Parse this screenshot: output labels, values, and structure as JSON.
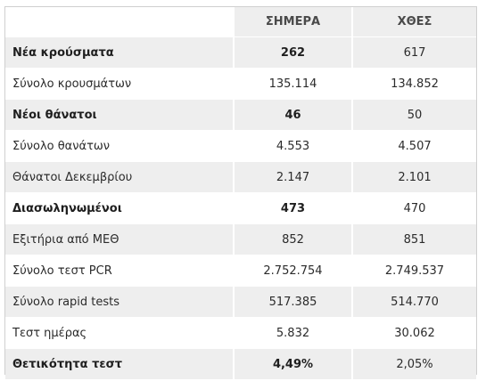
{
  "header": {
    "today": "ΣΗΜΕΡΑ",
    "yesterday": "ΧΘΕΣ"
  },
  "rows": [
    {
      "label": "Νέα κρούσματα",
      "today": "262",
      "yesterday": "617",
      "bold": true
    },
    {
      "label": "Σύνολο κρουσμάτων",
      "today": "135.114",
      "yesterday": "134.852",
      "bold": false
    },
    {
      "label": "Νέοι θάνατοι",
      "today": "46",
      "yesterday": "50",
      "bold": true
    },
    {
      "label": "Σύνολο θανάτων",
      "today": "4.553",
      "yesterday": "4.507",
      "bold": false
    },
    {
      "label": "Θάνατοι Δεκεμβρίου",
      "today": "2.147",
      "yesterday": "2.101",
      "bold": false
    },
    {
      "label": "Διασωληνωμένοι",
      "today": "473",
      "yesterday": "470",
      "bold": true
    },
    {
      "label": "Εξιτήρια από ΜΕΘ",
      "today": "852",
      "yesterday": "851",
      "bold": false
    },
    {
      "label": "Σύνολο τεστ PCR",
      "today": "2.752.754",
      "yesterday": "2.749.537",
      "bold": false
    },
    {
      "label": "Σύνολο rapid tests",
      "today": "517.385",
      "yesterday": "514.770",
      "bold": false
    },
    {
      "label": "Τεστ ημέρας",
      "today": "5.832",
      "yesterday": "30.062",
      "bold": false
    },
    {
      "label": "Θετικότητα τεστ",
      "today": "4,49%",
      "yesterday": "2,05%",
      "bold": true
    }
  ]
}
